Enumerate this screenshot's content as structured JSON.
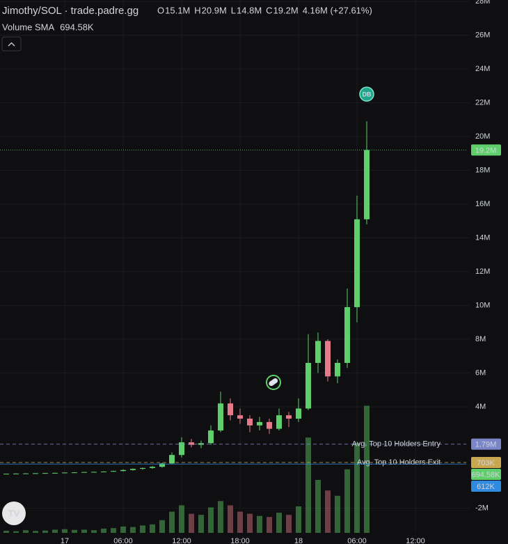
{
  "chart_data": {
    "type": "candlestick",
    "header": {
      "title": "Jimothy/SOL · trade.padre.gg",
      "ohlc": [
        {
          "key": "O",
          "text": "15.1M"
        },
        {
          "key": "H",
          "text": "20.9M"
        },
        {
          "key": "L",
          "text": "14.8M"
        },
        {
          "key": "C",
          "text": "19.2M"
        }
      ],
      "change": "4.16M (+27.61%)"
    },
    "volume_sma": {
      "label": "Volume SMA",
      "value": 694580,
      "value_label": "694.58K"
    },
    "categories": [
      null,
      null,
      null,
      null,
      null,
      null,
      "17",
      null,
      null,
      null,
      null,
      null,
      "06:00",
      null,
      null,
      null,
      null,
      null,
      "12:00",
      null,
      null,
      null,
      null,
      null,
      "18:00",
      null,
      null,
      null,
      null,
      null,
      "18",
      null,
      null,
      null,
      null,
      null,
      "06:00",
      null,
      null,
      null,
      null,
      null,
      "12:00"
    ],
    "open": [
      30000,
      40000,
      50000,
      60000,
      70000,
      80000,
      90000,
      110000,
      120000,
      140000,
      150000,
      170000,
      200000,
      260000,
      330000,
      380000,
      450000,
      650000,
      1150000,
      1900000,
      1750000,
      1850000,
      2600000,
      4200000,
      3500000,
      3300000,
      2900000,
      3100000,
      2700000,
      3500000,
      3300000,
      3900000,
      6600000,
      7900000,
      5800000,
      6600000,
      9900000,
      15100000,
      null,
      null,
      null,
      null,
      null
    ],
    "high": [
      50000,
      60000,
      70000,
      80000,
      90000,
      100000,
      120000,
      130000,
      150000,
      170000,
      180000,
      220000,
      300000,
      350000,
      400000,
      500000,
      700000,
      1300000,
      2200000,
      2100000,
      2000000,
      2900000,
      4900000,
      4500000,
      3900000,
      3500000,
      3400000,
      3300000,
      3900000,
      3700000,
      4500000,
      8300000,
      8400000,
      8000000,
      6800000,
      11000000,
      16500000,
      20900000,
      null,
      null,
      null,
      null,
      null
    ],
    "low": [
      20000,
      30000,
      40000,
      50000,
      60000,
      70000,
      80000,
      90000,
      110000,
      120000,
      130000,
      150000,
      180000,
      220000,
      280000,
      330000,
      400000,
      600000,
      1000000,
      1600000,
      1550000,
      1750000,
      2500000,
      3200000,
      3000000,
      2500000,
      2600000,
      2400000,
      2600000,
      2800000,
      3100000,
      3800000,
      6000000,
      5500000,
      5400000,
      6300000,
      9000000,
      14800000,
      null,
      null,
      null,
      null,
      null
    ],
    "close": [
      40000,
      50000,
      60000,
      70000,
      80000,
      90000,
      110000,
      120000,
      140000,
      150000,
      170000,
      200000,
      260000,
      330000,
      380000,
      450000,
      650000,
      1150000,
      1900000,
      1750000,
      1850000,
      2600000,
      4200000,
      3500000,
      3300000,
      2900000,
      3100000,
      2700000,
      3500000,
      3300000,
      3900000,
      6600000,
      7900000,
      5800000,
      6600000,
      9900000,
      15100000,
      19200000,
      null,
      null,
      null,
      null,
      null
    ],
    "volume": [
      20000,
      15000,
      25000,
      18000,
      22000,
      30000,
      35000,
      28000,
      30000,
      25000,
      40000,
      45000,
      60000,
      55000,
      70000,
      80000,
      120000,
      200000,
      260000,
      180000,
      170000,
      240000,
      300000,
      260000,
      200000,
      180000,
      160000,
      150000,
      190000,
      170000,
      250000,
      900000,
      500000,
      400000,
      350000,
      600000,
      850000,
      1200000,
      null,
      null,
      null,
      null,
      null
    ],
    "up_color": "#5fcf6b",
    "down_color": "#e57b8a",
    "ylim": [
      -3460000,
      28080000
    ],
    "yticks": [
      {
        "value": -2000000,
        "label": "-2M"
      },
      {
        "value": 4000000,
        "label": "4M"
      },
      {
        "value": 6000000,
        "label": "6M"
      },
      {
        "value": 8000000,
        "label": "8M"
      },
      {
        "value": 10000000,
        "label": "10M"
      },
      {
        "value": 12000000,
        "label": "12M"
      },
      {
        "value": 14000000,
        "label": "14M"
      },
      {
        "value": 16000000,
        "label": "16M"
      },
      {
        "value": 18000000,
        "label": "18M"
      },
      {
        "value": 20000000,
        "label": "20M"
      },
      {
        "value": 22000000,
        "label": "22M"
      },
      {
        "value": 24000000,
        "label": "24M"
      },
      {
        "value": 26000000,
        "label": "26M"
      },
      {
        "value": 28000000,
        "label": "28M"
      }
    ],
    "y2lim": [
      0,
      2400000
    ],
    "grid": true,
    "price_lines": [
      {
        "value": 19200000,
        "value_label": "19.2M",
        "color": "#5fcf6b",
        "style": "dotted"
      },
      {
        "label": "Avg. Top 10 Holders Entry",
        "value": 1790000,
        "value_label": "1.79M",
        "color": "#7b86c9",
        "style": "dashed"
      },
      {
        "label": "Avg. Top 10 Holders Exit",
        "value": 703000,
        "value_label": "703K",
        "color": "#c9a650",
        "style": "dashed"
      },
      {
        "value": 612000,
        "value_label": "612K",
        "color": "#2f8ae0",
        "style": "solid"
      }
    ],
    "marker": "DB"
  }
}
